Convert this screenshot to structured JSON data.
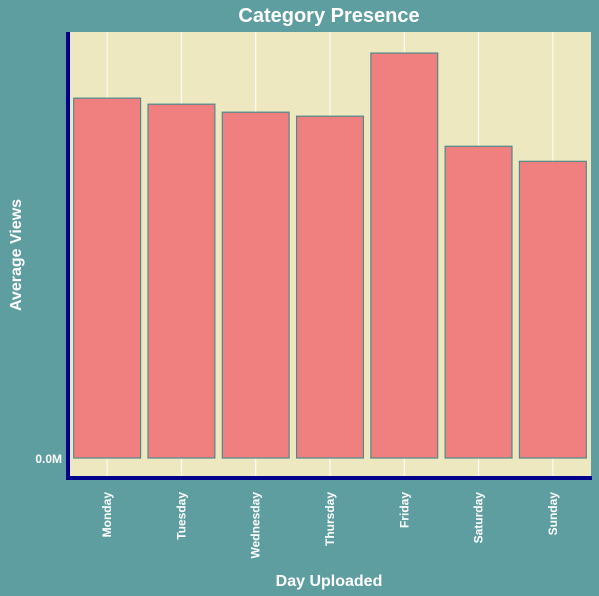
{
  "chart_data": {
    "type": "bar",
    "title": "Category Presence",
    "xlabel": "Day Uploaded",
    "ylabel": "Average Views",
    "categories": [
      "Monday",
      "Tuesday",
      "Wednesday",
      "Thursday",
      "Friday",
      "Saturday",
      "Sunday"
    ],
    "values": [
      359,
      353,
      345,
      341,
      404,
      311,
      296
    ],
    "y_tick_labels": [
      "0.0M"
    ],
    "ylim": [
      0,
      425
    ],
    "grid": "vertical lines only",
    "legend": "none",
    "colors": {
      "background": "#5f9ea0",
      "plot_background": "#eee8c0",
      "bar_fill": "#f08080",
      "bar_edge": "#4e8a8c",
      "axis_line": "#00008b",
      "grid_line": "#ffffff",
      "text": "#ffffff"
    }
  }
}
